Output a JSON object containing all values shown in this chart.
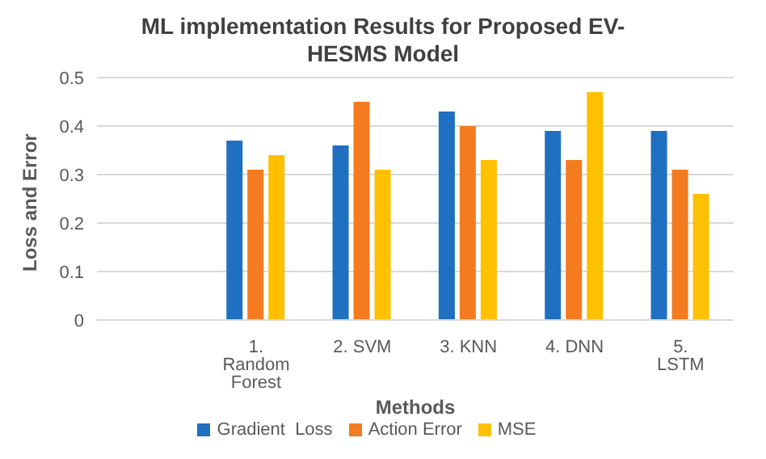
{
  "chart_data": {
    "type": "bar",
    "title": "ML implementation Results for Proposed EV-HESMS Model",
    "xlabel": "Methods",
    "ylabel": "Loss and Error",
    "categories": [
      null,
      "1. Random Forest",
      "2. SVM",
      "3. KNN",
      "4. DNN",
      "5. LSTM"
    ],
    "series": [
      {
        "name": "Gradient  Loss",
        "color": "#1f70c1",
        "values": [
          null,
          0.37,
          0.36,
          0.43,
          0.39,
          0.39
        ]
      },
      {
        "name": "Action Error",
        "color": "#f47b20",
        "values": [
          null,
          0.31,
          0.45,
          0.4,
          0.33,
          0.31
        ]
      },
      {
        "name": "MSE",
        "color": "#ffc000",
        "values": [
          null,
          0.34,
          0.31,
          0.33,
          0.47,
          0.26
        ]
      }
    ],
    "ylim": [
      0,
      0.5
    ],
    "yticks": [
      0,
      0.1,
      0.2,
      0.3,
      0.4,
      0.5
    ],
    "grid": "y",
    "legend": "bottom"
  }
}
